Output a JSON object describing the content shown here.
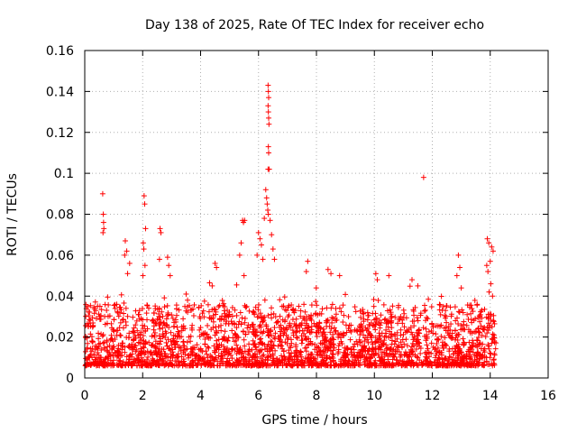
{
  "chart_data": {
    "type": "scatter",
    "title": "Day 138 of 2025, Rate Of TEC Index for receiver echo",
    "xlabel": "GPS time / hours",
    "ylabel": "ROTI / TECUs",
    "xlim": [
      0,
      16
    ],
    "ylim": [
      0,
      0.16
    ],
    "x_ticks": [
      0,
      2,
      4,
      6,
      8,
      10,
      12,
      14,
      16
    ],
    "y_ticks": [
      0,
      0.02,
      0.04,
      0.06,
      0.08,
      0.1,
      0.12,
      0.14,
      0.16
    ],
    "x_tick_labels": [
      "0",
      "2",
      "4",
      "6",
      "8",
      "10",
      "12",
      "14",
      "16"
    ],
    "y_tick_labels": [
      "0",
      "0.02",
      "0.04",
      "0.06",
      "0.08",
      "0.1",
      "0.12",
      "0.14",
      "0.16"
    ],
    "grid": true,
    "marker": "+",
    "color": "#ff0000",
    "series": [
      {
        "name": "ROTI",
        "points": [
          [
            0.62,
            0.09
          ],
          [
            0.64,
            0.08
          ],
          [
            0.65,
            0.076
          ],
          [
            0.66,
            0.073
          ],
          [
            0.63,
            0.071
          ],
          [
            2.05,
            0.089
          ],
          [
            2.07,
            0.085
          ],
          [
            2.1,
            0.073
          ],
          [
            2.02,
            0.066
          ],
          [
            2.04,
            0.063
          ],
          [
            2.08,
            0.055
          ],
          [
            2.01,
            0.05
          ],
          [
            1.4,
            0.067
          ],
          [
            1.45,
            0.062
          ],
          [
            1.38,
            0.06
          ],
          [
            1.55,
            0.056
          ],
          [
            1.48,
            0.051
          ],
          [
            2.6,
            0.073
          ],
          [
            2.63,
            0.071
          ],
          [
            2.58,
            0.058
          ],
          [
            2.86,
            0.059
          ],
          [
            2.9,
            0.055
          ],
          [
            2.95,
            0.05
          ],
          [
            3.5,
            0.041
          ],
          [
            3.55,
            0.038
          ],
          [
            4.5,
            0.056
          ],
          [
            4.55,
            0.054
          ],
          [
            4.4,
            0.045
          ],
          [
            5.45,
            0.077
          ],
          [
            5.48,
            0.076
          ],
          [
            5.52,
            0.077
          ],
          [
            5.4,
            0.066
          ],
          [
            5.35,
            0.06
          ],
          [
            5.5,
            0.05
          ],
          [
            6.0,
            0.071
          ],
          [
            6.05,
            0.068
          ],
          [
            6.1,
            0.065
          ],
          [
            5.95,
            0.06
          ],
          [
            6.15,
            0.058
          ],
          [
            6.25,
            0.092
          ],
          [
            6.28,
            0.088
          ],
          [
            6.3,
            0.085
          ],
          [
            6.32,
            0.082
          ],
          [
            6.34,
            0.08
          ],
          [
            6.2,
            0.078
          ],
          [
            6.33,
            0.143
          ],
          [
            6.34,
            0.14
          ],
          [
            6.35,
            0.137
          ],
          [
            6.33,
            0.133
          ],
          [
            6.34,
            0.13
          ],
          [
            6.35,
            0.127
          ],
          [
            6.36,
            0.124
          ],
          [
            6.34,
            0.113
          ],
          [
            6.35,
            0.11
          ],
          [
            6.33,
            0.102
          ],
          [
            6.37,
            0.102
          ],
          [
            6.4,
            0.077
          ],
          [
            6.45,
            0.07
          ],
          [
            6.5,
            0.063
          ],
          [
            6.55,
            0.058
          ],
          [
            7.7,
            0.057
          ],
          [
            7.65,
            0.052
          ],
          [
            8.4,
            0.053
          ],
          [
            8.5,
            0.051
          ],
          [
            8.8,
            0.05
          ],
          [
            10.05,
            0.051
          ],
          [
            10.1,
            0.048
          ],
          [
            10.5,
            0.05
          ],
          [
            11.7,
            0.098
          ],
          [
            11.3,
            0.048
          ],
          [
            11.5,
            0.045
          ],
          [
            12.9,
            0.06
          ],
          [
            12.95,
            0.054
          ],
          [
            12.85,
            0.05
          ],
          [
            13.0,
            0.044
          ],
          [
            13.9,
            0.068
          ],
          [
            13.95,
            0.066
          ],
          [
            14.05,
            0.064
          ],
          [
            14.1,
            0.062
          ],
          [
            14.0,
            0.057
          ],
          [
            13.88,
            0.055
          ],
          [
            13.92,
            0.052
          ],
          [
            14.02,
            0.046
          ],
          [
            13.96,
            0.042
          ],
          [
            14.08,
            0.04
          ]
        ]
      }
    ]
  }
}
